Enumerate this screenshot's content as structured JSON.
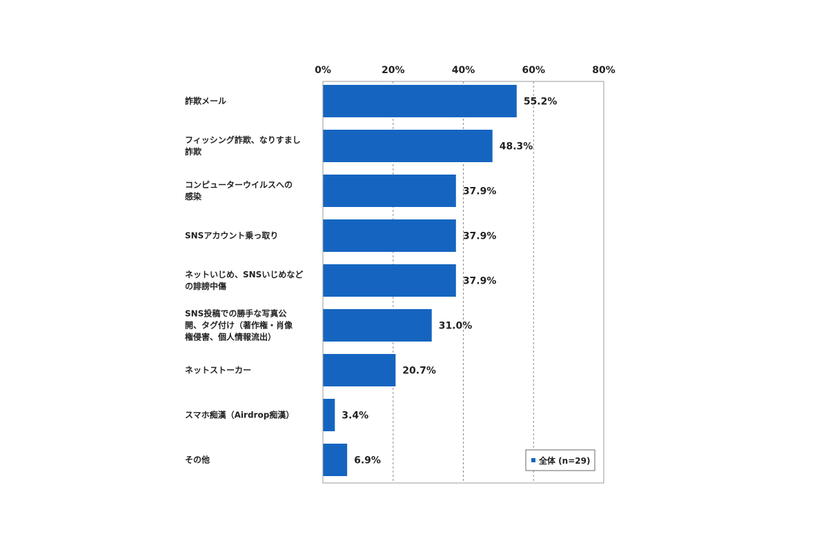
{
  "chart_data": {
    "type": "bar",
    "orientation": "horizontal",
    "categories": [
      [
        "詐欺メール"
      ],
      [
        "フィッシング詐欺、なりすまし",
        "詐欺"
      ],
      [
        "コンピューターウイルスへの",
        "感染"
      ],
      [
        "SNSアカウント乗っ取り"
      ],
      [
        "ネットいじめ、SNSいじめなど",
        "の誹謗中傷"
      ],
      [
        "SNS投稿での勝手な写真公",
        "開、タグ付け（著作権・肖像",
        "権侵害、個人情報流出）"
      ],
      [
        "ネットストーカー"
      ],
      [
        "スマホ痴漢（Airdrop痴漢）"
      ],
      [
        "その他"
      ]
    ],
    "series": [
      {
        "name": "全体 (n=29)",
        "values": [
          55.2,
          48.3,
          37.9,
          37.9,
          37.9,
          31.0,
          20.7,
          3.4,
          6.9
        ],
        "labels": [
          "55.2%",
          "48.3%",
          "37.9%",
          "37.9%",
          "37.9%",
          "31.0%",
          "20.7%",
          "3.4%",
          "6.9%"
        ]
      }
    ],
    "xlim": [
      0,
      80
    ],
    "xticks": [
      0,
      20,
      40,
      60,
      80
    ],
    "xtick_labels": [
      "0%",
      "20%",
      "40%",
      "60%",
      "80%"
    ],
    "xaxis_position": "top",
    "grid": "vertical dashed",
    "legend": "bottom-right",
    "colors": {
      "bar": "#1565c0",
      "grid": "#888888",
      "frame": "#999999"
    }
  }
}
